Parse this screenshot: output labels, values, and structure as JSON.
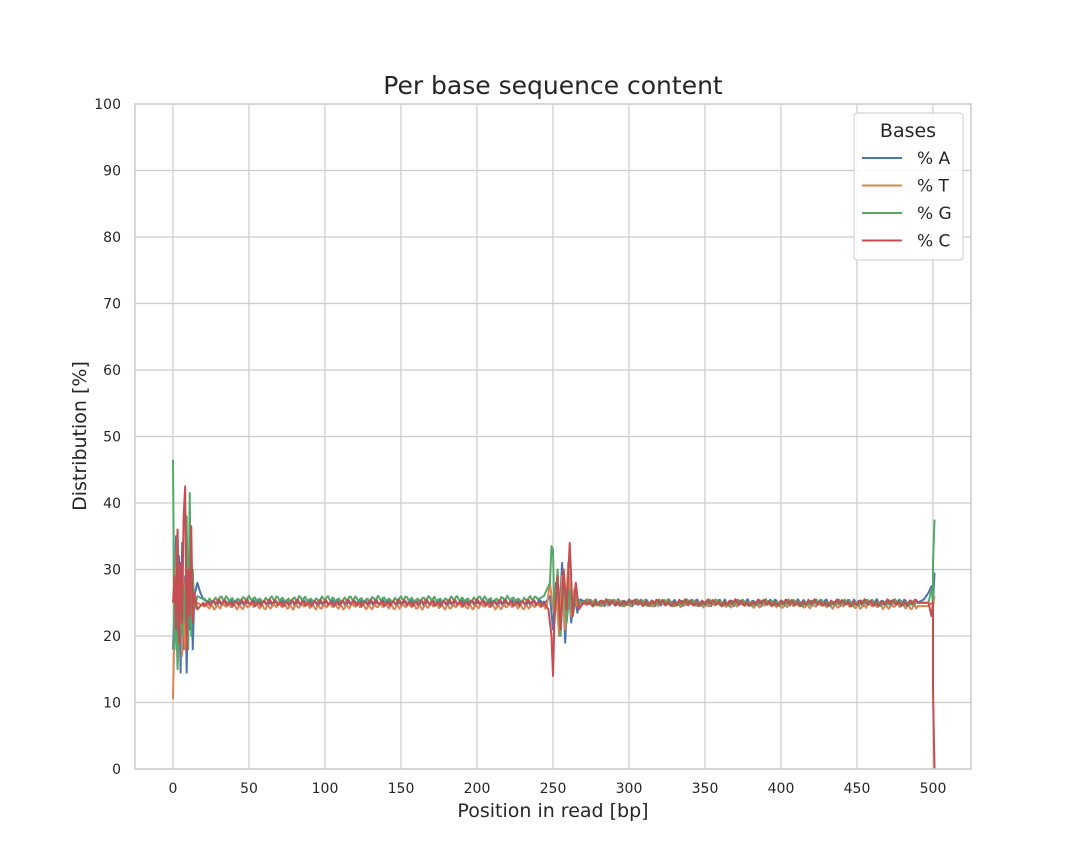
{
  "chart_data": {
    "type": "line",
    "title": "Per base sequence content",
    "xlabel": "Position in read [bp]",
    "ylabel": "Distribution [%]",
    "xlim": [
      -25,
      525
    ],
    "ylim": [
      0,
      100
    ],
    "xticks": [
      0,
      50,
      100,
      150,
      200,
      250,
      300,
      350,
      400,
      450,
      500
    ],
    "yticks": [
      0,
      10,
      20,
      30,
      40,
      50,
      60,
      70,
      80,
      90,
      100
    ],
    "grid": true,
    "legend": {
      "title": "Bases",
      "placement": "top-right"
    },
    "colors": {
      "A": "#4c72b0",
      "T": "#dd8452",
      "G": "#55a868",
      "C": "#c44e52",
      "grid": "#cccccc",
      "text": "#262626"
    },
    "series": [
      {
        "name": "% A",
        "key": "A",
        "points": [
          [
            0,
            18
          ],
          [
            1,
            24
          ],
          [
            2,
            35
          ],
          [
            3,
            16
          ],
          [
            4,
            32
          ],
          [
            5,
            14.5
          ],
          [
            6,
            34
          ],
          [
            7,
            18
          ],
          [
            8,
            29
          ],
          [
            9,
            14.5
          ],
          [
            10,
            28
          ],
          [
            11,
            21
          ],
          [
            12,
            30
          ],
          [
            13,
            18
          ],
          [
            14,
            26
          ],
          [
            16,
            28
          ],
          [
            18,
            26.5
          ],
          [
            20,
            25.5
          ],
          [
            25,
            25
          ],
          [
            500,
            25
          ],
          [
            245,
            25
          ],
          [
            248,
            26
          ],
          [
            250,
            21
          ],
          [
            252,
            28
          ],
          [
            254,
            22
          ],
          [
            256,
            31
          ],
          [
            258,
            19
          ],
          [
            260,
            28
          ],
          [
            262,
            22
          ],
          [
            264,
            26.5
          ],
          [
            266,
            23.5
          ],
          [
            268,
            25.5
          ],
          [
            272,
            25
          ],
          [
            490,
            25
          ],
          [
            494,
            25.5
          ],
          [
            497,
            26.5
          ],
          [
            499,
            27.5
          ],
          [
            501,
            29.5
          ]
        ]
      },
      {
        "name": "% T",
        "key": "T",
        "points": [
          [
            0,
            10.5
          ],
          [
            1,
            22
          ],
          [
            2,
            30
          ],
          [
            3,
            36
          ],
          [
            4,
            20
          ],
          [
            5,
            30
          ],
          [
            6,
            17
          ],
          [
            7,
            28
          ],
          [
            8,
            18
          ],
          [
            9,
            33
          ],
          [
            10,
            22
          ],
          [
            11,
            29
          ],
          [
            12,
            23
          ],
          [
            13,
            27
          ],
          [
            14,
            24
          ],
          [
            16,
            25
          ],
          [
            20,
            24.5
          ],
          [
            500,
            24.5
          ],
          [
            246,
            24.5
          ],
          [
            248,
            28
          ],
          [
            250,
            24
          ],
          [
            252,
            27
          ],
          [
            254,
            20
          ],
          [
            256,
            29
          ],
          [
            258,
            21
          ],
          [
            260,
            31
          ],
          [
            262,
            23
          ],
          [
            264,
            27
          ],
          [
            266,
            24.5
          ],
          [
            270,
            25
          ],
          [
            490,
            24.5
          ],
          [
            497,
            24.5
          ],
          [
            499,
            25
          ],
          [
            501,
            26
          ]
        ]
      },
      {
        "name": "% G",
        "key": "G",
        "points": [
          [
            0,
            46.5
          ],
          [
            1,
            18
          ],
          [
            2,
            24
          ],
          [
            3,
            15
          ],
          [
            4,
            21
          ],
          [
            5,
            30
          ],
          [
            6,
            20
          ],
          [
            7,
            27
          ],
          [
            8,
            22
          ],
          [
            9,
            38
          ],
          [
            10,
            18
          ],
          [
            11,
            41.5
          ],
          [
            12,
            20
          ],
          [
            13,
            30
          ],
          [
            14,
            24
          ],
          [
            16,
            26
          ],
          [
            20,
            25.5
          ],
          [
            500,
            25.5
          ],
          [
            240,
            25.5
          ],
          [
            244,
            26
          ],
          [
            246,
            27
          ],
          [
            248,
            28
          ],
          [
            249,
            33.5
          ],
          [
            250,
            33
          ],
          [
            251,
            22
          ],
          [
            253,
            30
          ],
          [
            255,
            20
          ],
          [
            257,
            29
          ],
          [
            259,
            22
          ],
          [
            261,
            27
          ],
          [
            263,
            23
          ],
          [
            265,
            26
          ],
          [
            268,
            25
          ],
          [
            490,
            25
          ],
          [
            497,
            25
          ],
          [
            499,
            27
          ],
          [
            500,
            31
          ],
          [
            501,
            37.5
          ]
        ]
      },
      {
        "name": "% C",
        "key": "C",
        "points": [
          [
            0,
            25
          ],
          [
            1,
            29
          ],
          [
            2,
            21
          ],
          [
            3,
            36
          ],
          [
            4,
            19
          ],
          [
            5,
            31
          ],
          [
            6,
            22
          ],
          [
            7,
            38
          ],
          [
            8,
            42.5
          ],
          [
            9,
            18
          ],
          [
            10,
            30
          ],
          [
            11,
            23
          ],
          [
            12,
            36.5
          ],
          [
            13,
            22
          ],
          [
            14,
            26.5
          ],
          [
            16,
            24
          ],
          [
            20,
            25
          ],
          [
            500,
            25
          ],
          [
            244,
            25
          ],
          [
            247,
            24
          ],
          [
            249,
            20
          ],
          [
            250,
            14
          ],
          [
            251,
            23
          ],
          [
            253,
            29
          ],
          [
            255,
            21
          ],
          [
            257,
            30
          ],
          [
            259,
            24
          ],
          [
            261,
            34
          ],
          [
            263,
            23
          ],
          [
            265,
            28
          ],
          [
            267,
            24
          ],
          [
            270,
            25
          ],
          [
            490,
            25
          ],
          [
            497,
            25
          ],
          [
            499,
            23
          ],
          [
            500,
            12
          ],
          [
            501,
            0
          ]
        ]
      }
    ]
  }
}
